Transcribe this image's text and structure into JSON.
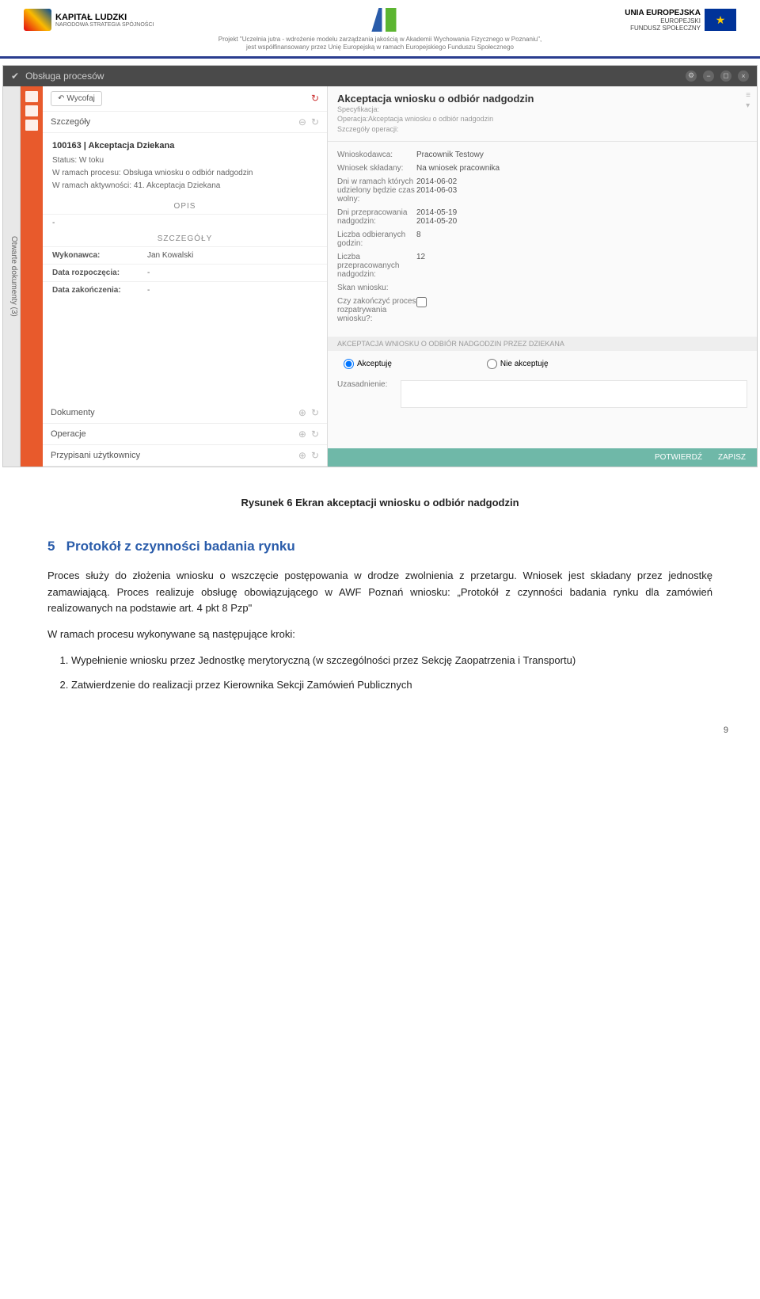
{
  "header": {
    "logo1_title": "KAPITAŁ LUDZKI",
    "logo1_sub": "NARODOWA STRATEGIA SPÓJNOŚCI",
    "eu_title": "UNIA EUROPEJSKA",
    "eu_sub1": "EUROPEJSKI",
    "eu_sub2": "FUNDUSZ SPOŁECZNY",
    "subtext1": "Projekt \"Uczelnia jutra - wdrożenie modelu zarządzania jakością w Akademii Wychowania Fizycznego w Poznaniu\",",
    "subtext2": "jest współfinansowany przez Unię Europejską w ramach Europejskiego Funduszu Społecznego"
  },
  "app": {
    "title": "Obsługa procesów",
    "sidebar_tab": "Otwarte dokumenty   (3)",
    "wycofaj": "Wycofaj",
    "left": {
      "szczegoly": "Szczegóły",
      "task_title": "100163 | Akceptacja Dziekana",
      "status_lbl": "Status:",
      "status_val": "W toku",
      "proces_lbl": "W ramach procesu:",
      "proces_val": "Obsługa wniosku o odbiór nadgodzin",
      "akt_lbl": "W ramach aktywności:",
      "akt_val": "41. Akceptacja Dziekana",
      "opis": "OPIS",
      "dash": "-",
      "szcz_hdr": "SZCZEGÓŁY",
      "wykonawca_k": "Wykonawca:",
      "wykonawca_v": "Jan Kowalski",
      "data_rozp_k": "Data rozpoczęcia:",
      "data_rozp_v": "-",
      "data_zak_k": "Data zakończenia:",
      "data_zak_v": "-",
      "dokumenty": "Dokumenty",
      "operacje": "Operacje",
      "przypisani": "Przypisani użytkownicy"
    },
    "right": {
      "title": "Akceptacja wniosku o odbiór nadgodzin",
      "spec_lbl": "Specyfikacja:",
      "op_lbl": "Operacja:",
      "op_val": "Akceptacja wniosku o odbiór nadgodzin",
      "szcz_op": "Szczegóły operacji:",
      "wnioskodawca_k": "Wnioskodawca:",
      "wnioskodawca_v": "Pracownik Testowy",
      "wniosek_k": "Wniosek składany:",
      "wniosek_v": "Na wniosek pracownika",
      "dni_wolny_k": "Dni w ramach których udzielony będzie czas wolny:",
      "dni_wolny_v": "2014-06-02\n2014-06-03",
      "dni_nad_k": "Dni przepracowania nadgodzin:",
      "dni_nad_v": "2014-05-19\n2014-05-20",
      "liczba_odb_k": "Liczba odbieranych godzin:",
      "liczba_odb_v": "8",
      "liczba_prz_k": "Liczba przepracowanych nadgodzin:",
      "liczba_prz_v": "12",
      "skan_k": "Skan wniosku:",
      "czy_k": "Czy zakończyć proces rozpatrywania wniosku?:",
      "section_bar": "AKCEPTACJA WNIOSKU O ODBIÓR NADGODZIN PRZEZ DZIEKANA",
      "akceptuje": "Akceptuję",
      "nie_akceptuje": "Nie akceptuję",
      "uzasadnienie": "Uzasadnienie:",
      "potwierdz": "POTWIERDŹ",
      "zapisz": "ZAPISZ"
    }
  },
  "doc": {
    "caption": "Rysunek 6 Ekran akceptacji wniosku o odbiór nadgodzin",
    "sec_num": "5",
    "sec_title": "Protokół z czynności badania rynku",
    "p1": "Proces służy do złożenia wniosku o wszczęcie postępowania w drodze zwolnienia z przetargu. Wniosek jest składany przez jednostkę zamawiającą. Proces realizuje obsługę obowiązującego w AWF Poznań wniosku: „Protokół z czynności badania rynku dla zamówień realizowanych na podstawie art. 4 pkt 8 Pzp\"",
    "p2": "W ramach procesu wykonywane są następujące kroki:",
    "li1": "Wypełnienie wniosku przez Jednostkę merytoryczną (w szczególności przez Sekcję Zaopatrzenia i Transportu)",
    "li2": "Zatwierdzenie do realizacji przez Kierownika Sekcji Zamówień Publicznych",
    "page": "9"
  }
}
